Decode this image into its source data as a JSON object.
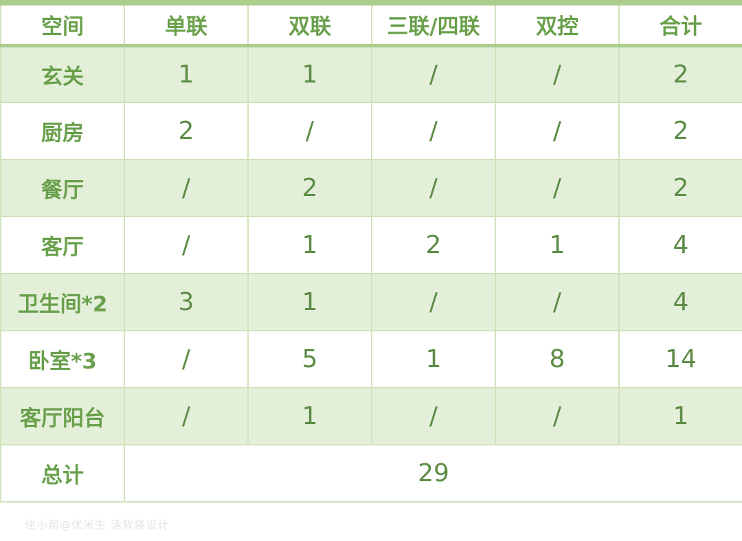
{
  "table": {
    "columns": [
      "空间",
      "单联",
      "双联",
      "三联/四联",
      "双控",
      "合计"
    ],
    "rows": [
      {
        "label": "玄关",
        "values": [
          "1",
          "1",
          "/",
          "/",
          "2"
        ]
      },
      {
        "label": "厨房",
        "values": [
          "2",
          "/",
          "/",
          "/",
          "2"
        ]
      },
      {
        "label": "餐厅",
        "values": [
          "/",
          "2",
          "/",
          "/",
          "2"
        ]
      },
      {
        "label": "客厅",
        "values": [
          "/",
          "1",
          "2",
          "1",
          "4"
        ]
      },
      {
        "label": "卫生间*2",
        "values": [
          "3",
          "1",
          "/",
          "/",
          "4"
        ]
      },
      {
        "label": "卧室*3",
        "values": [
          "/",
          "5",
          "1",
          "8",
          "14"
        ]
      },
      {
        "label": "客厅阳台",
        "values": [
          "/",
          "1",
          "/",
          "/",
          "1"
        ]
      }
    ],
    "footer": {
      "label": "总计",
      "total": "29"
    }
  },
  "watermark": "住小帮@优米生 活软装设计",
  "colors": {
    "header_text": "#69a04b",
    "number_text": "#5d8c46",
    "tinted_row_background": "#e4efda",
    "cell_border": "#cfe3bb",
    "header_border": "#abce8d"
  }
}
